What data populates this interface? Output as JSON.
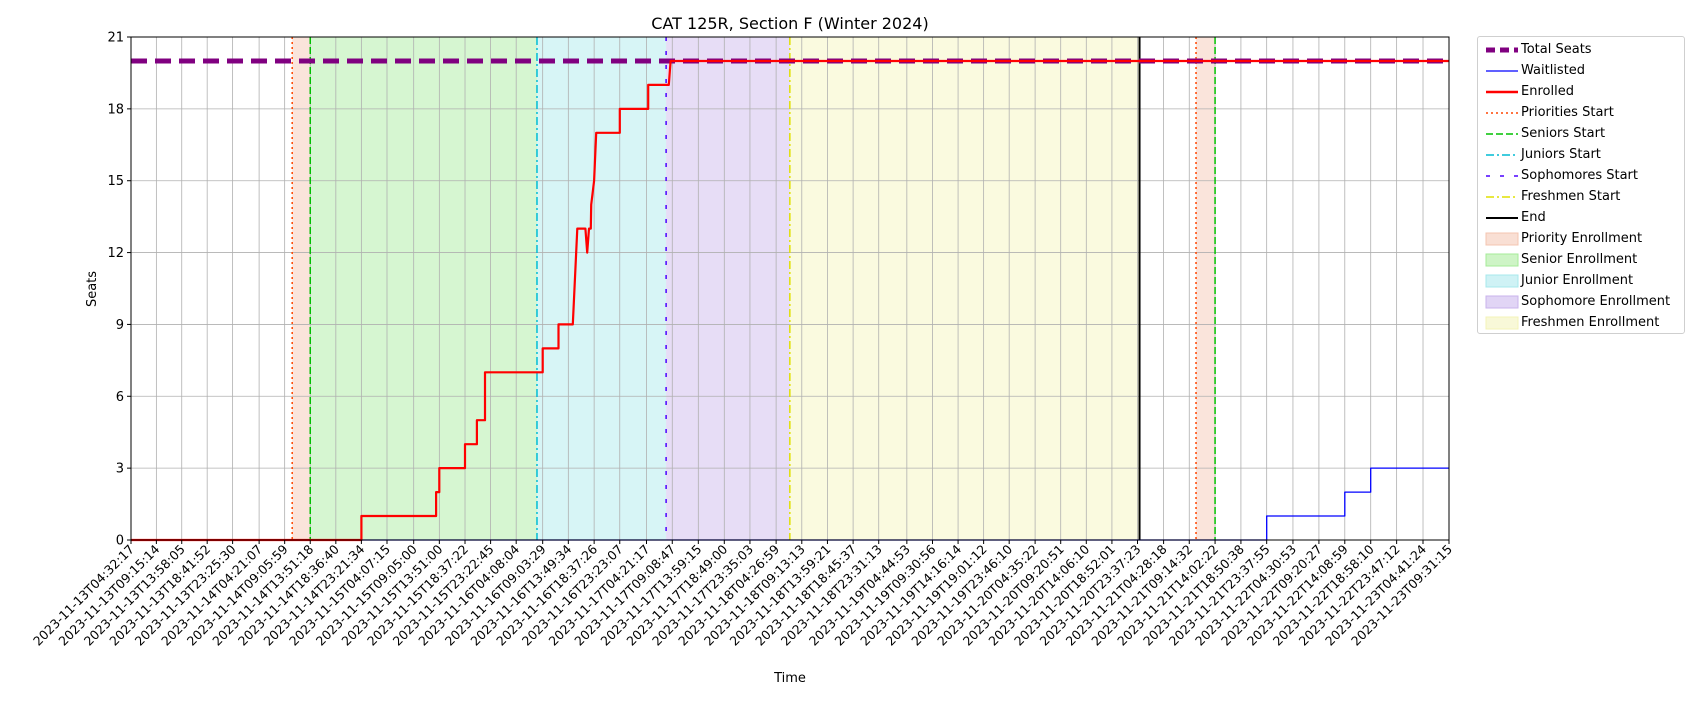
{
  "chart_data": {
    "type": "line",
    "title": "CAT 125R, Section F (Winter 2024)",
    "xlabel": "Time",
    "ylabel": "Seats",
    "ylim": [
      0,
      21
    ],
    "yticks": [
      0,
      3,
      6,
      9,
      12,
      15,
      18,
      21
    ],
    "grid": true,
    "legend_position": "outside-right-top",
    "x_start": "2023-11-13T04:32:17",
    "x_end": "2023-11-23T09:31:15",
    "xticks": [
      "2023-11-13T04:32:17",
      "2023-11-13T09:15:14",
      "2023-11-13T13:58:05",
      "2023-11-13T18:41:52",
      "2023-11-13T23:25:30",
      "2023-11-14T04:21:07",
      "2023-11-14T09:05:59",
      "2023-11-14T13:51:18",
      "2023-11-14T18:36:40",
      "2023-11-14T23:21:34",
      "2023-11-15T04:07:15",
      "2023-11-15T09:05:00",
      "2023-11-15T13:51:00",
      "2023-11-15T18:37:22",
      "2023-11-15T23:22:45",
      "2023-11-16T04:08:04",
      "2023-11-16T09:03:29",
      "2023-11-16T13:49:34",
      "2023-11-16T18:37:26",
      "2023-11-16T23:23:07",
      "2023-11-17T04:21:17",
      "2023-11-17T09:08:47",
      "2023-11-17T13:59:15",
      "2023-11-17T18:49:00",
      "2023-11-17T23:35:03",
      "2023-11-18T04:26:59",
      "2023-11-18T09:13:13",
      "2023-11-18T13:59:21",
      "2023-11-18T18:45:37",
      "2023-11-18T23:31:13",
      "2023-11-19T04:44:53",
      "2023-11-19T09:30:56",
      "2023-11-19T14:16:14",
      "2023-11-19T19:01:12",
      "2023-11-19T23:46:10",
      "2023-11-20T04:35:22",
      "2023-11-20T09:20:51",
      "2023-11-20T14:06:10",
      "2023-11-20T18:52:01",
      "2023-11-20T23:37:23",
      "2023-11-21T04:28:18",
      "2023-11-21T09:14:32",
      "2023-11-21T14:02:22",
      "2023-11-21T18:50:38",
      "2023-11-21T23:37:55",
      "2023-11-22T04:30:53",
      "2023-11-22T09:20:27",
      "2023-11-22T14:08:59",
      "2023-11-22T18:58:10",
      "2023-11-22T23:47:12",
      "2023-11-23T04:41:24",
      "2023-11-23T09:31:15"
    ],
    "series": [
      {
        "name": "Total Seats",
        "color": "#800080",
        "style": "dashed",
        "values": [
          [
            "2023-11-13T04:32:17",
            20
          ],
          [
            "2023-11-23T09:31:15",
            20
          ]
        ]
      },
      {
        "name": "Waitlisted",
        "color": "#0000ff",
        "style": "solid",
        "values": [
          [
            "2023-11-13T04:32:17",
            0
          ],
          [
            "2023-11-21T23:37:55",
            0
          ],
          [
            "2023-11-21T23:37:55",
            1
          ],
          [
            "2023-11-22T14:08:59",
            1
          ],
          [
            "2023-11-22T14:08:59",
            2
          ],
          [
            "2023-11-22T18:58:10",
            2
          ],
          [
            "2023-11-22T18:58:10",
            3
          ],
          [
            "2023-11-23T09:31:15",
            3
          ]
        ]
      },
      {
        "name": "Enrolled",
        "color": "#ff0000",
        "style": "solid",
        "values": [
          [
            "2023-11-13T04:32:17",
            0
          ],
          [
            "2023-11-14T23:21:34",
            0
          ],
          [
            "2023-11-14T23:21:34",
            1
          ],
          [
            "2023-11-15T13:15:00",
            1
          ],
          [
            "2023-11-15T13:15:00",
            2
          ],
          [
            "2023-11-15T13:51:00",
            2
          ],
          [
            "2023-11-15T13:51:00",
            3
          ],
          [
            "2023-11-15T18:37:22",
            3
          ],
          [
            "2023-11-15T18:37:22",
            4
          ],
          [
            "2023-11-15T20:50:00",
            4
          ],
          [
            "2023-11-15T20:50:00",
            5
          ],
          [
            "2023-11-15T22:20:00",
            5
          ],
          [
            "2023-11-15T22:20:00",
            7
          ],
          [
            "2023-11-16T09:03:29",
            7
          ],
          [
            "2023-11-16T09:03:29",
            8
          ],
          [
            "2023-11-16T12:00:00",
            8
          ],
          [
            "2023-11-16T12:00:00",
            9
          ],
          [
            "2023-11-16T14:40:00",
            9
          ],
          [
            "2023-11-16T15:30:00",
            13
          ],
          [
            "2023-11-16T17:00:00",
            13
          ],
          [
            "2023-11-16T17:20:00",
            12
          ],
          [
            "2023-11-16T17:40:00",
            13
          ],
          [
            "2023-11-16T18:00:00",
            13
          ],
          [
            "2023-11-16T18:05:00",
            14
          ],
          [
            "2023-11-16T18:37:26",
            15
          ],
          [
            "2023-11-16T19:00:00",
            17
          ],
          [
            "2023-11-16T23:23:07",
            17
          ],
          [
            "2023-11-16T23:23:07",
            18
          ],
          [
            "2023-11-17T04:40:00",
            18
          ],
          [
            "2023-11-17T04:40:00",
            19
          ],
          [
            "2023-11-17T08:30:00",
            19
          ],
          [
            "2023-11-17T08:50:00",
            20
          ],
          [
            "2023-11-23T09:31:15",
            20
          ]
        ]
      }
    ],
    "markers": [
      {
        "name": "Priorities Start",
        "color": "#ff4500",
        "style": "dotted",
        "x": "2023-11-14T10:30:00"
      },
      {
        "name": "Seniors Start",
        "color": "#00c000",
        "style": "dashed",
        "x": "2023-11-14T13:51:18"
      },
      {
        "name": "Juniors Start",
        "color": "#00bcd4",
        "style": "dashdot",
        "x": "2023-11-16T08:00:00"
      },
      {
        "name": "Sophomores Start",
        "color": "#4b00ff",
        "style": "loose",
        "x": "2023-11-17T08:00:00"
      },
      {
        "name": "Freshmen Start",
        "color": "#e0e000",
        "style": "dashdot",
        "x": "2023-11-18T07:00:00"
      },
      {
        "name": "End",
        "color": "#000000",
        "style": "solid",
        "x": "2023-11-21T00:00:00"
      },
      {
        "name": "Priorities Start",
        "color": "#ff4500",
        "style": "dotted",
        "x": "2023-11-21T10:30:00",
        "in_legend": false
      },
      {
        "name": "Seniors Start",
        "color": "#00c000",
        "style": "dashed",
        "x": "2023-11-21T14:02:22",
        "in_legend": false
      }
    ],
    "periods": [
      {
        "name": "Priority Enrollment",
        "color": "#f4c4b0",
        "start": "2023-11-14T10:30:00",
        "end": "2023-11-14T13:51:18"
      },
      {
        "name": "Senior Enrollment",
        "color": "#a5eb98",
        "start": "2023-11-14T13:51:18",
        "end": "2023-11-16T08:00:00"
      },
      {
        "name": "Junior Enrollment",
        "color": "#a7e8ec",
        "start": "2023-11-16T08:00:00",
        "end": "2023-11-17T08:00:00"
      },
      {
        "name": "Sophomore Enrollment",
        "color": "#c9b3ec",
        "start": "2023-11-17T08:00:00",
        "end": "2023-11-18T07:00:00"
      },
      {
        "name": "Freshmen Enrollment",
        "color": "#f3f3b8",
        "start": "2023-11-18T07:00:00",
        "end": "2023-11-21T00:00:00"
      },
      {
        "name": "Priority Enrollment",
        "color": "#f4c4b0",
        "start": "2023-11-21T10:30:00",
        "end": "2023-11-21T14:02:22",
        "in_legend": false
      }
    ]
  }
}
